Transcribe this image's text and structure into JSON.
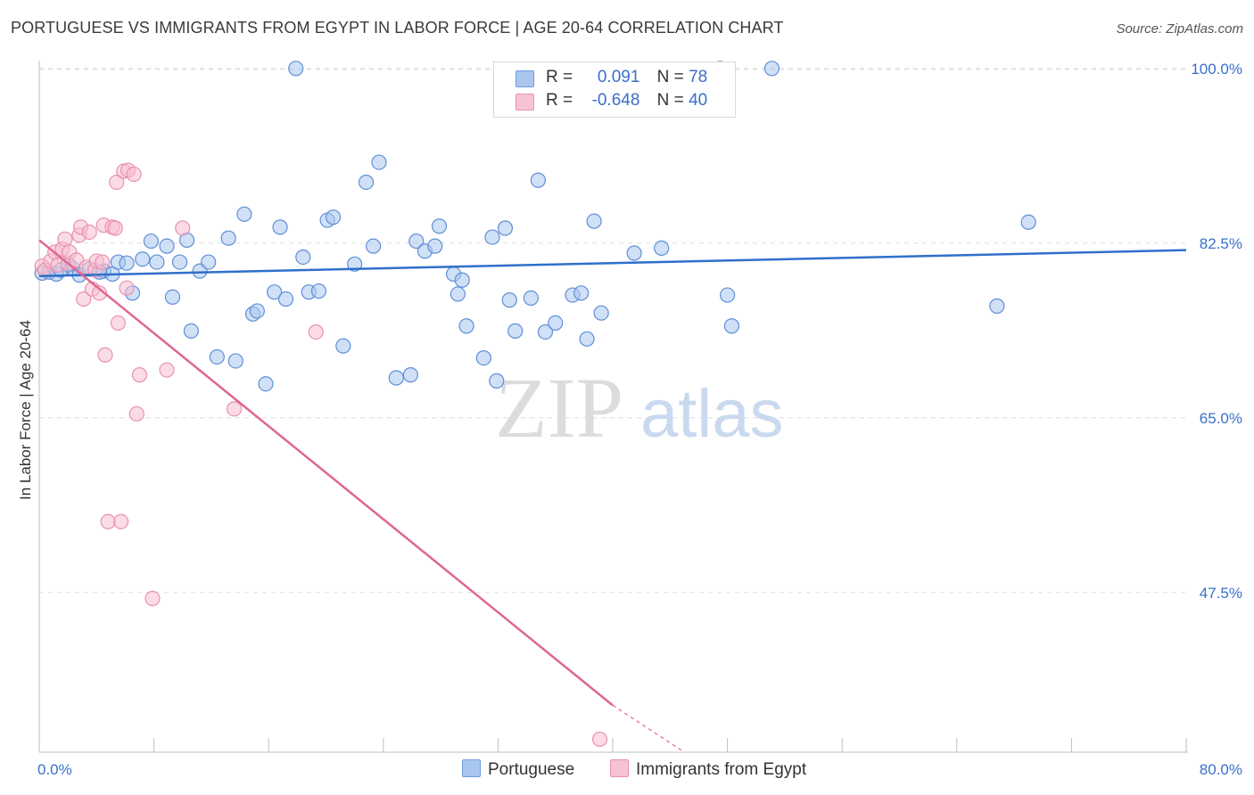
{
  "title": "PORTUGUESE VS IMMIGRANTS FROM EGYPT IN LABOR FORCE | AGE 20-64 CORRELATION CHART",
  "source": "Source: ZipAtlas.com",
  "watermark": {
    "part1": "ZIP",
    "part2": "atlas"
  },
  "legend": {
    "rows": [
      {
        "r_label": "R =",
        "r_value": "0.091",
        "n_label": "N =",
        "n_value": "78",
        "color": "#a9c6ef",
        "border": "#6f9be0"
      },
      {
        "r_label": "R =",
        "r_value": "-0.648",
        "n_label": "N =",
        "n_value": "40",
        "color": "#f7c3d3",
        "border": "#e98fae"
      }
    ]
  },
  "bottom_legend": {
    "series1": "Portuguese",
    "series2": "Immigrants from Egypt"
  },
  "colors": {
    "blue_fill": "#a9c6ef",
    "blue_stroke": "#5f8fd8",
    "blue_line": "#2f6fca",
    "pink_fill": "#f7bfd0",
    "pink_stroke": "#e891b0",
    "pink_line": "#e0668f",
    "tick_text": "#3a6fc8",
    "grid": "#dedede"
  },
  "chart_data": {
    "type": "scatter",
    "title": "PORTUGUESE VS IMMIGRANTS FROM EGYPT IN LABOR FORCE | AGE 20-64 CORRELATION CHART",
    "xlabel": "",
    "ylabel": "In Labor Force | Age 20-64",
    "xlim": [
      0,
      80
    ],
    "ylim": [
      31.5,
      101.5
    ],
    "x_tick_labels": [
      "0.0%",
      "80.0%"
    ],
    "y_ticks": [
      47.5,
      65.0,
      82.5,
      100.0
    ],
    "y_tick_labels": [
      "47.5%",
      "65.0%",
      "82.5%",
      "100.0%"
    ],
    "grid": true,
    "series": [
      {
        "name": "Portuguese",
        "points": [
          [
            0.2,
            79.5
          ],
          [
            0.7,
            79.6
          ],
          [
            1.2,
            79.4
          ],
          [
            2.3,
            80.0
          ],
          [
            2.8,
            79.3
          ],
          [
            4.5,
            79.7
          ],
          [
            5.1,
            79.4
          ],
          [
            5.5,
            80.6
          ],
          [
            6.1,
            80.5
          ],
          [
            6.5,
            77.5
          ],
          [
            7.2,
            80.9
          ],
          [
            7.8,
            82.7
          ],
          [
            8.2,
            80.6
          ],
          [
            8.9,
            82.2
          ],
          [
            9.3,
            77.1
          ],
          [
            9.8,
            80.6
          ],
          [
            10.3,
            82.8
          ],
          [
            10.6,
            73.7
          ],
          [
            11.2,
            79.7
          ],
          [
            11.8,
            80.6
          ],
          [
            12.4,
            71.1
          ],
          [
            13.2,
            83.0
          ],
          [
            13.7,
            70.7
          ],
          [
            14.3,
            85.4
          ],
          [
            14.9,
            75.4
          ],
          [
            15.2,
            75.7
          ],
          [
            15.8,
            68.4
          ],
          [
            16.4,
            77.6
          ],
          [
            16.8,
            84.1
          ],
          [
            17.2,
            76.9
          ],
          [
            17.9,
            100.0
          ],
          [
            18.4,
            81.1
          ],
          [
            18.8,
            77.6
          ],
          [
            19.5,
            77.7
          ],
          [
            20.1,
            84.8
          ],
          [
            20.5,
            85.1
          ],
          [
            21.2,
            72.2
          ],
          [
            22.0,
            80.4
          ],
          [
            22.8,
            88.6
          ],
          [
            23.3,
            82.2
          ],
          [
            23.7,
            90.6
          ],
          [
            24.9,
            69.0
          ],
          [
            25.9,
            69.3
          ],
          [
            26.3,
            82.7
          ],
          [
            26.9,
            81.7
          ],
          [
            27.6,
            82.2
          ],
          [
            27.9,
            84.2
          ],
          [
            28.9,
            79.4
          ],
          [
            29.2,
            77.4
          ],
          [
            29.5,
            78.8
          ],
          [
            29.8,
            74.2
          ],
          [
            31.0,
            71.0
          ],
          [
            31.6,
            83.1
          ],
          [
            31.9,
            68.7
          ],
          [
            32.5,
            84.0
          ],
          [
            32.8,
            76.8
          ],
          [
            33.2,
            73.7
          ],
          [
            34.3,
            77.0
          ],
          [
            34.8,
            88.8
          ],
          [
            35.3,
            73.6
          ],
          [
            36.0,
            74.5
          ],
          [
            37.2,
            77.3
          ],
          [
            37.8,
            77.5
          ],
          [
            38.2,
            72.9
          ],
          [
            39.2,
            75.5
          ],
          [
            38.7,
            84.7
          ],
          [
            41.5,
            81.5
          ],
          [
            43.4,
            82.0
          ],
          [
            48.0,
            77.3
          ],
          [
            48.3,
            74.2
          ],
          [
            51.1,
            100.0
          ],
          [
            66.8,
            76.2
          ],
          [
            69.0,
            84.6
          ],
          [
            47.5,
            100.0
          ],
          [
            2.0,
            80.3
          ],
          [
            3.5,
            79.9
          ],
          [
            4.2,
            79.6
          ],
          [
            1.5,
            79.8
          ]
        ]
      },
      {
        "name": "Immigrants from Egypt",
        "points": [
          [
            0.2,
            80.2
          ],
          [
            0.4,
            79.8
          ],
          [
            0.8,
            80.7
          ],
          [
            1.1,
            81.6
          ],
          [
            1.3,
            80.3
          ],
          [
            1.6,
            81.9
          ],
          [
            1.8,
            82.9
          ],
          [
            2.0,
            80.5
          ],
          [
            2.1,
            81.6
          ],
          [
            2.6,
            80.8
          ],
          [
            2.8,
            83.3
          ],
          [
            2.9,
            84.1
          ],
          [
            3.1,
            76.9
          ],
          [
            3.3,
            80.1
          ],
          [
            3.5,
            83.6
          ],
          [
            3.7,
            77.9
          ],
          [
            3.9,
            79.8
          ],
          [
            4.0,
            80.7
          ],
          [
            4.2,
            77.5
          ],
          [
            4.4,
            80.6
          ],
          [
            4.5,
            84.3
          ],
          [
            4.6,
            71.3
          ],
          [
            4.8,
            54.6
          ],
          [
            5.1,
            84.1
          ],
          [
            5.3,
            84.0
          ],
          [
            5.4,
            88.6
          ],
          [
            5.5,
            74.5
          ],
          [
            5.7,
            54.6
          ],
          [
            5.9,
            89.7
          ],
          [
            6.1,
            78.0
          ],
          [
            6.2,
            89.8
          ],
          [
            6.6,
            89.4
          ],
          [
            6.8,
            65.4
          ],
          [
            7.0,
            69.3
          ],
          [
            7.9,
            46.9
          ],
          [
            8.9,
            69.8
          ],
          [
            10.0,
            84.0
          ],
          [
            13.6,
            65.9
          ],
          [
            19.3,
            73.6
          ],
          [
            39.1,
            32.8
          ]
        ]
      }
    ],
    "trendlines": [
      {
        "series": "Portuguese",
        "x": [
          0,
          80
        ],
        "y": [
          79.2,
          81.8
        ]
      },
      {
        "series": "Immigrants from Egypt",
        "x": [
          0,
          40.0
        ],
        "y": [
          82.8,
          36.2
        ],
        "dashed_to": [
          45.0,
          30.4
        ]
      }
    ],
    "legend_position": "top-center"
  }
}
